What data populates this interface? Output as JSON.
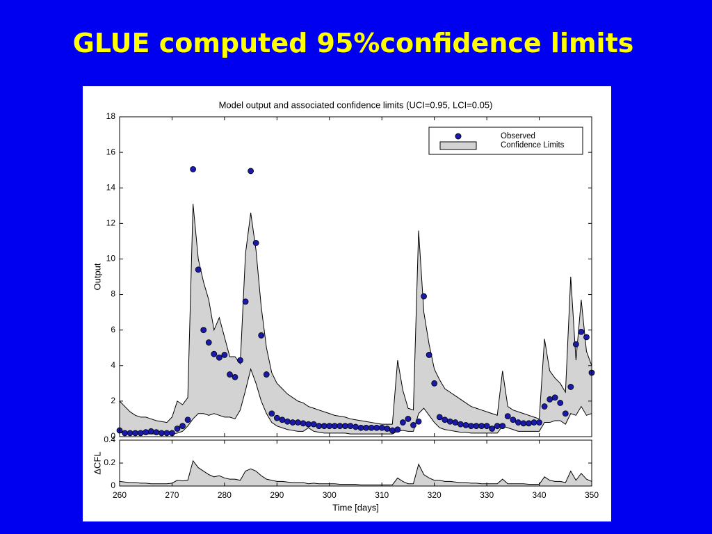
{
  "title": "GLUE computed 95%confidence limits",
  "chart_data": [
    {
      "type": "band-scatter",
      "title": "Model output and associated confidence limits (UCI=0.95, LCI=0.05)",
      "y_label": "Output",
      "xlim": [
        260,
        350
      ],
      "ylim": [
        0,
        18
      ],
      "yticks": [
        0,
        2,
        4,
        6,
        8,
        10,
        12,
        14,
        16,
        18
      ],
      "legend": "upper right",
      "x": [
        260,
        261,
        262,
        263,
        264,
        265,
        266,
        267,
        268,
        269,
        270,
        271,
        272,
        273,
        274,
        275,
        276,
        277,
        278,
        279,
        280,
        281,
        282,
        283,
        284,
        285,
        286,
        287,
        288,
        289,
        290,
        291,
        292,
        293,
        294,
        295,
        296,
        297,
        298,
        299,
        300,
        301,
        302,
        303,
        304,
        305,
        306,
        307,
        308,
        309,
        310,
        311,
        312,
        313,
        314,
        315,
        316,
        317,
        318,
        319,
        320,
        321,
        322,
        323,
        324,
        325,
        326,
        327,
        328,
        329,
        330,
        331,
        332,
        333,
        334,
        335,
        336,
        337,
        338,
        339,
        340,
        341,
        342,
        343,
        344,
        345,
        346,
        347,
        348,
        349,
        350
      ],
      "series": [
        {
          "name": "Observed",
          "color": "#1a1aa8",
          "values": [
            0.35,
            0.2,
            0.2,
            0.2,
            0.2,
            0.25,
            0.3,
            0.25,
            0.2,
            0.2,
            0.2,
            0.45,
            0.6,
            0.95,
            15.05,
            9.4,
            6.0,
            5.3,
            4.65,
            4.45,
            4.6,
            3.5,
            3.35,
            4.3,
            7.6,
            14.95,
            10.9,
            5.7,
            3.5,
            1.3,
            1.05,
            0.95,
            0.85,
            0.8,
            0.8,
            0.75,
            0.7,
            0.7,
            0.6,
            0.6,
            0.6,
            0.6,
            0.6,
            0.6,
            0.6,
            0.55,
            0.5,
            0.5,
            0.5,
            0.5,
            0.5,
            0.45,
            0.35,
            0.4,
            0.8,
            1.0,
            0.65,
            0.85,
            7.9,
            4.6,
            3.0,
            1.1,
            0.95,
            0.85,
            0.8,
            0.7,
            0.65,
            0.6,
            0.6,
            0.6,
            0.6,
            0.45,
            0.6,
            0.6,
            1.15,
            0.95,
            0.8,
            0.75,
            0.75,
            0.8,
            0.8,
            1.7,
            2.1,
            2.2,
            1.9,
            1.3,
            2.8,
            5.2,
            5.9,
            5.6,
            3.6
          ]
        },
        {
          "name": "Confidence Limits",
          "color": "#d3d3d3",
          "upper": [
            2.0,
            1.7,
            1.4,
            1.2,
            1.1,
            1.1,
            1.0,
            0.9,
            0.85,
            0.8,
            1.1,
            2.0,
            1.8,
            2.2,
            13.1,
            10.0,
            8.7,
            7.7,
            6.0,
            6.7,
            5.6,
            4.5,
            4.5,
            4.1,
            10.3,
            12.6,
            10.5,
            7.3,
            5.0,
            3.6,
            3.0,
            2.7,
            2.4,
            2.2,
            2.0,
            1.9,
            1.7,
            1.6,
            1.5,
            1.4,
            1.3,
            1.2,
            1.15,
            1.1,
            1.0,
            0.95,
            0.9,
            0.85,
            0.8,
            0.75,
            0.7,
            0.7,
            0.7,
            4.3,
            2.6,
            1.6,
            1.5,
            11.6,
            7.0,
            5.2,
            3.8,
            3.2,
            2.7,
            2.5,
            2.3,
            2.1,
            1.9,
            1.7,
            1.6,
            1.5,
            1.4,
            1.3,
            1.2,
            3.7,
            1.7,
            1.5,
            1.4,
            1.3,
            1.2,
            1.1,
            1.0,
            5.5,
            3.7,
            3.3,
            3.0,
            2.5,
            9.0,
            4.3,
            7.7,
            4.8,
            4.0
          ],
          "lower": [
            0.25,
            0.15,
            0.15,
            0.15,
            0.15,
            0.15,
            0.15,
            0.15,
            0.15,
            0.15,
            0.15,
            0.2,
            0.3,
            0.6,
            1.0,
            1.3,
            1.3,
            1.2,
            1.3,
            1.2,
            1.1,
            1.1,
            1.0,
            1.5,
            2.6,
            3.8,
            3.0,
            2.0,
            1.3,
            0.8,
            0.6,
            0.5,
            0.4,
            0.35,
            0.3,
            0.3,
            0.5,
            0.3,
            0.25,
            0.2,
            0.2,
            0.2,
            0.2,
            0.2,
            0.15,
            0.15,
            0.15,
            0.15,
            0.15,
            0.15,
            0.15,
            0.15,
            0.15,
            0.3,
            0.35,
            0.3,
            0.3,
            1.3,
            1.6,
            1.2,
            0.8,
            0.5,
            0.4,
            0.35,
            0.3,
            0.25,
            0.25,
            0.2,
            0.2,
            0.2,
            0.2,
            0.2,
            0.2,
            0.6,
            0.5,
            0.4,
            0.3,
            0.3,
            0.3,
            0.3,
            0.3,
            0.8,
            0.8,
            0.9,
            0.9,
            0.7,
            1.3,
            1.2,
            1.7,
            1.2,
            1.3
          ]
        }
      ]
    },
    {
      "type": "area",
      "x_label": "Time [days]",
      "y_label": "ΔCFL",
      "xlim": [
        260,
        350
      ],
      "ylim": [
        0,
        0.4
      ],
      "xticks": [
        260,
        270,
        280,
        290,
        300,
        310,
        320,
        330,
        340,
        350
      ],
      "yticks": [
        0,
        0.2,
        0.4
      ],
      "color": "#d3d3d3",
      "x": [
        260,
        261,
        262,
        263,
        264,
        265,
        266,
        267,
        268,
        269,
        270,
        271,
        272,
        273,
        274,
        275,
        276,
        277,
        278,
        279,
        280,
        281,
        282,
        283,
        284,
        285,
        286,
        287,
        288,
        289,
        290,
        291,
        292,
        293,
        294,
        295,
        296,
        297,
        298,
        299,
        300,
        301,
        302,
        303,
        304,
        305,
        306,
        307,
        308,
        309,
        310,
        311,
        312,
        313,
        314,
        315,
        316,
        317,
        318,
        319,
        320,
        321,
        322,
        323,
        324,
        325,
        326,
        327,
        328,
        329,
        330,
        331,
        332,
        333,
        334,
        335,
        336,
        337,
        338,
        339,
        340,
        341,
        342,
        343,
        344,
        345,
        346,
        347,
        348,
        349,
        350
      ],
      "values": [
        0.04,
        0.035,
        0.03,
        0.03,
        0.025,
        0.025,
        0.02,
        0.02,
        0.02,
        0.02,
        0.025,
        0.05,
        0.045,
        0.05,
        0.22,
        0.16,
        0.13,
        0.1,
        0.08,
        0.09,
        0.07,
        0.06,
        0.06,
        0.05,
        0.13,
        0.15,
        0.13,
        0.09,
        0.06,
        0.05,
        0.04,
        0.04,
        0.035,
        0.03,
        0.03,
        0.03,
        0.02,
        0.025,
        0.02,
        0.02,
        0.02,
        0.02,
        0.015,
        0.015,
        0.015,
        0.015,
        0.01,
        0.01,
        0.01,
        0.01,
        0.01,
        0.01,
        0.01,
        0.07,
        0.04,
        0.02,
        0.02,
        0.19,
        0.1,
        0.07,
        0.05,
        0.05,
        0.04,
        0.04,
        0.035,
        0.03,
        0.03,
        0.025,
        0.025,
        0.02,
        0.02,
        0.02,
        0.02,
        0.06,
        0.02,
        0.02,
        0.02,
        0.02,
        0.015,
        0.015,
        0.015,
        0.08,
        0.05,
        0.04,
        0.04,
        0.03,
        0.13,
        0.05,
        0.11,
        0.06,
        0.04
      ]
    }
  ]
}
